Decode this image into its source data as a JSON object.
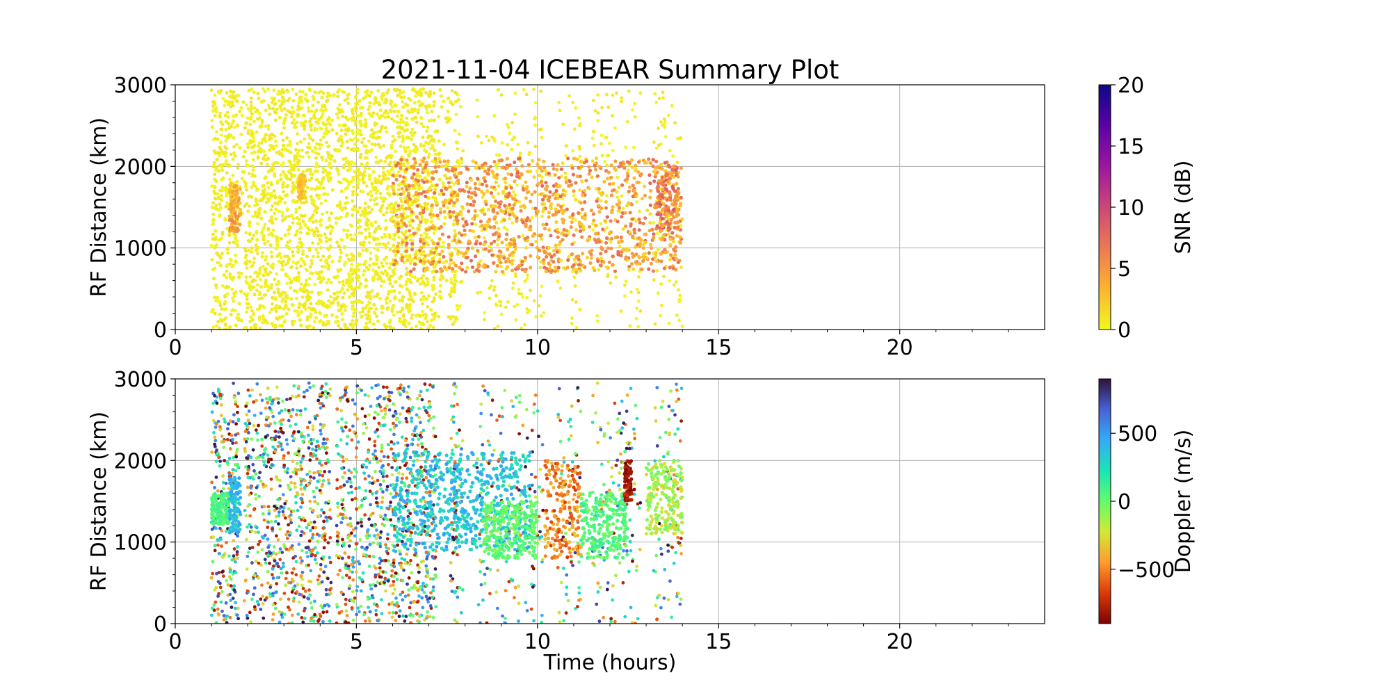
{
  "figure": {
    "title": "2021-11-04 ICEBEAR Summary Plot"
  },
  "chart_data": [
    {
      "type": "scatter",
      "panel": "top",
      "title": "2021-11-04 ICEBEAR Summary Plot",
      "xlabel": "",
      "ylabel": "RF Distance (km)",
      "xlim": [
        0,
        24
      ],
      "ylim": [
        0,
        3000
      ],
      "xticks": [
        0,
        5,
        10,
        15,
        20
      ],
      "yticks": [
        0,
        1000,
        2000,
        3000
      ],
      "grid": true,
      "color_quantity": "SNR",
      "colorbar": {
        "label": "SNR (dB)",
        "range": [
          0,
          20
        ],
        "ticks": [
          0,
          5,
          10,
          15,
          20
        ],
        "colormap": "plasma_r",
        "colors": [
          "#f0f921",
          "#fdb42f",
          "#ed7953",
          "#cc4778",
          "#9c179e",
          "#5c01a6",
          "#0d0887"
        ]
      },
      "data_extent": {
        "time_hours": [
          1.0,
          14.0
        ],
        "rf_distance_km": [
          0,
          2950
        ]
      },
      "features": [
        {
          "time_hours": [
            1.0,
            7.8
          ],
          "rf_distance_km": [
            0,
            2950
          ],
          "snr_db": [
            0,
            1
          ],
          "description": "dense noise"
        },
        {
          "time_hours": [
            1.5,
            1.8
          ],
          "rf_distance_km": [
            1200,
            1800
          ],
          "snr_db": [
            2,
            6
          ]
        },
        {
          "time_hours": [
            3.4,
            3.6
          ],
          "rf_distance_km": [
            1600,
            1900
          ],
          "snr_db": [
            1,
            4
          ]
        },
        {
          "time_hours": [
            6.0,
            14.0
          ],
          "rf_distance_km": [
            700,
            2100
          ],
          "snr_db": [
            1,
            8
          ],
          "description": "echo band"
        },
        {
          "time_hours": [
            13.3,
            13.9
          ],
          "rf_distance_km": [
            1200,
            2000
          ],
          "snr_db": [
            3,
            9
          ]
        }
      ],
      "gaps_hours": [
        [
          1.75,
          1.9
        ],
        [
          4.3,
          4.45
        ],
        [
          7.2,
          7.6
        ],
        [
          7.95,
          8.3
        ],
        [
          10.2,
          10.55
        ],
        [
          11.2,
          11.5
        ],
        [
          12.85,
          13.2
        ]
      ]
    },
    {
      "type": "scatter",
      "panel": "bottom",
      "xlabel": "Time (hours)",
      "ylabel": "RF Distance (km)",
      "xlim": [
        0,
        24
      ],
      "ylim": [
        0,
        3000
      ],
      "xticks": [
        0,
        5,
        10,
        15,
        20
      ],
      "yticks": [
        0,
        1000,
        2000,
        3000
      ],
      "grid": true,
      "color_quantity": "Doppler",
      "colorbar": {
        "label": "Doppler (m/s)",
        "range": [
          -900,
          900
        ],
        "ticks": [
          -500,
          0,
          500
        ],
        "tick_labels": [
          "−500",
          "0",
          "500"
        ],
        "colormap": "turbo_r",
        "colors": [
          "#7a0403",
          "#db3a07",
          "#fe9b2d",
          "#d1e935",
          "#62fc6b",
          "#1ae4b6",
          "#35abf8",
          "#4662d7",
          "#30123b"
        ]
      },
      "data_extent": {
        "time_hours": [
          1.0,
          14.0
        ],
        "rf_distance_km": [
          0,
          2950
        ]
      },
      "features": [
        {
          "time_hours": [
            1.0,
            1.5
          ],
          "rf_distance_km": [
            1200,
            1600
          ],
          "doppler_ms": [
            0,
            150
          ]
        },
        {
          "time_hours": [
            1.5,
            1.8
          ],
          "rf_distance_km": [
            1100,
            1800
          ],
          "doppler_ms": [
            300,
            500
          ]
        },
        {
          "time_hours": [
            6.0,
            9.8
          ],
          "rf_distance_km": [
            900,
            2100
          ],
          "doppler_ms": [
            200,
            500
          ]
        },
        {
          "time_hours": [
            8.5,
            10.0
          ],
          "rf_distance_km": [
            800,
            1500
          ],
          "doppler_ms": [
            -100,
            100
          ]
        },
        {
          "time_hours": [
            10.2,
            11.2
          ],
          "rf_distance_km": [
            800,
            2000
          ],
          "doppler_ms": [
            -700,
            -300
          ]
        },
        {
          "time_hours": [
            11.2,
            12.5
          ],
          "rf_distance_km": [
            800,
            1600
          ],
          "doppler_ms": [
            -50,
            150
          ]
        },
        {
          "time_hours": [
            12.4,
            12.6
          ],
          "rf_distance_km": [
            1500,
            2000
          ],
          "doppler_ms": [
            -900,
            -700
          ]
        },
        {
          "time_hours": [
            13.0,
            14.0
          ],
          "rf_distance_km": [
            1100,
            2000
          ],
          "doppler_ms": [
            -300,
            0
          ]
        }
      ],
      "gaps_hours": [
        [
          1.75,
          1.9
        ],
        [
          4.3,
          4.45
        ],
        [
          7.2,
          7.6
        ],
        [
          7.95,
          8.3
        ],
        [
          10.2,
          10.55
        ],
        [
          11.2,
          11.5
        ],
        [
          12.85,
          13.2
        ]
      ]
    }
  ]
}
